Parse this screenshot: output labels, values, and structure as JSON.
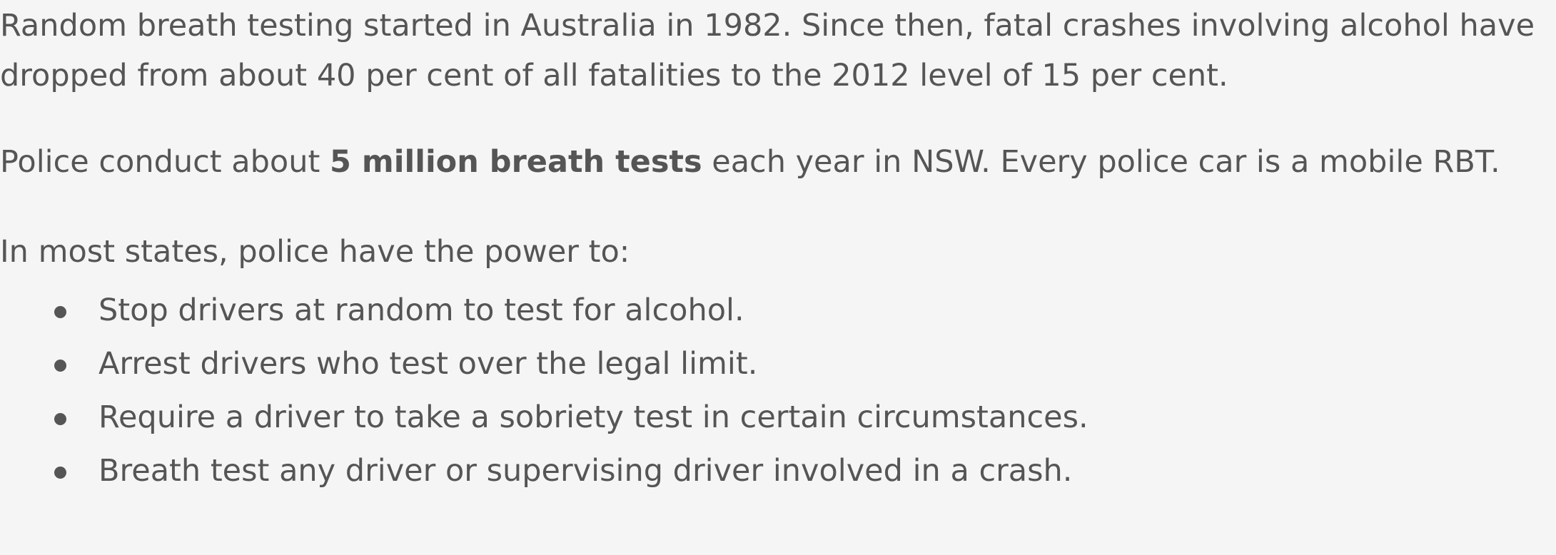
{
  "paragraphs": {
    "p1_line1": "Random breath testing started in Australia in 1982. Since then, fatal crashes involving alcohol have",
    "p1_line2": "dropped from about 40 per cent of all fatalities to the 2012 level of 15 per cent.",
    "p2_before": "Police conduct about ",
    "p2_bold": "5 million breath tests",
    "p2_after": " each year in NSW. Every police car is a mobile RBT.",
    "p3": "In most states, police have the power to:"
  },
  "powers": [
    "Stop drivers at random to test for alcohol.",
    "Arrest drivers who test over the legal limit.",
    "Require a driver to take a sobriety test in certain circumstances.",
    "Breath test any driver or supervising driver involved in a crash."
  ],
  "colors": {
    "background": "#f5f5f5",
    "text": "#555555"
  }
}
